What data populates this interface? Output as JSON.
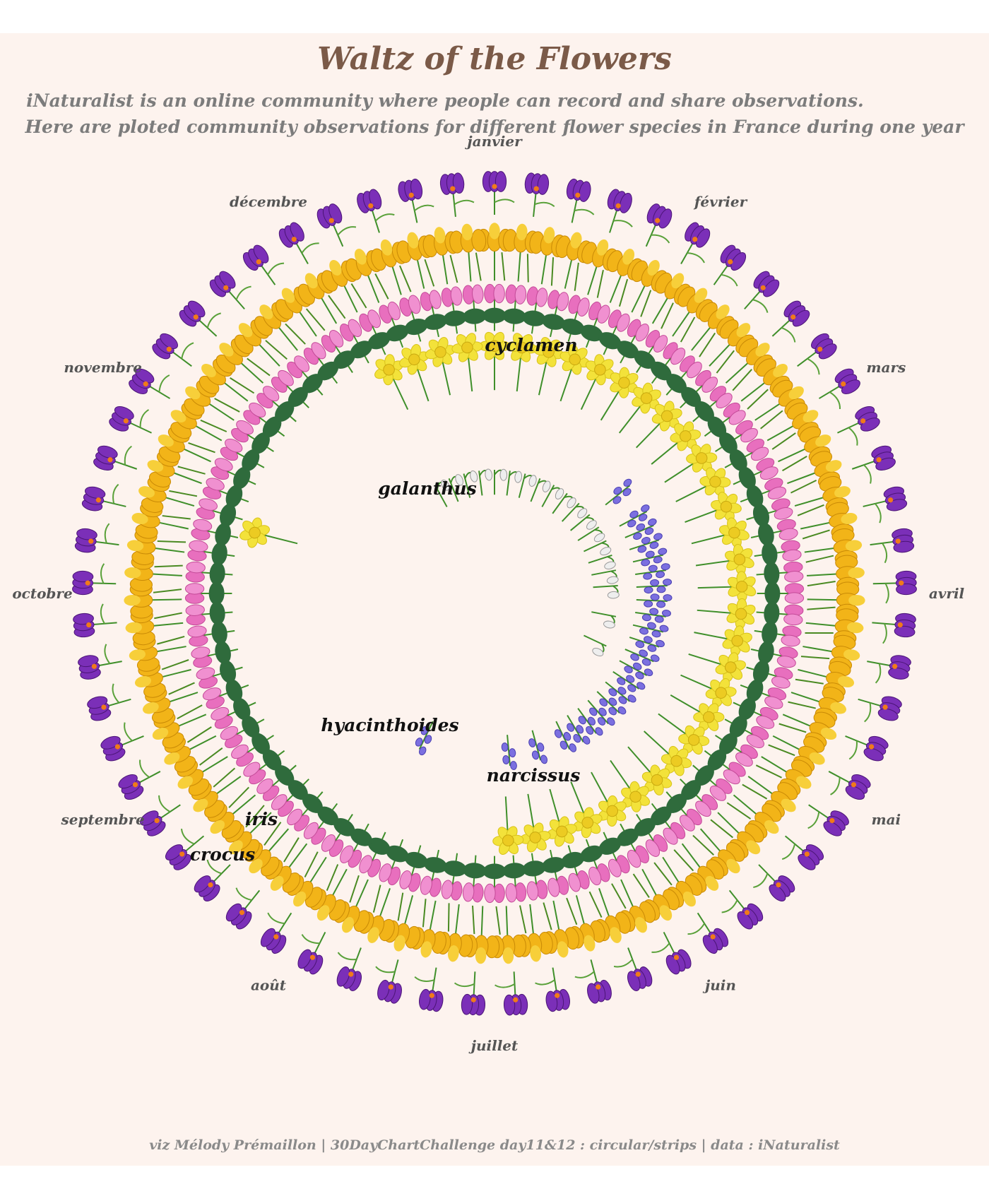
{
  "title": "Waltz of the Flowers",
  "subtitle_line1": "iNaturalist is an online community where people can record and share observations.",
  "subtitle_line2": "Here are ploted community observations for different flower species in France during one year",
  "caption": "viz Mélody Prémaillon | 30DayChartChallenge day11&12 : circular/strips | data : iNaturalist",
  "colors": {
    "background": "#fdf3ee",
    "title": "#7b5a48",
    "text": "#7c7c7c",
    "crocus": "#7b2fb8",
    "iris": "#f2b418",
    "cyclamen": "#e86fbe",
    "narcissus": "#f3e23a",
    "hyacinthoides": "#7b6fe0",
    "galanthus": "#eeeeee",
    "stem": "#3f8f2a"
  },
  "chart_data": {
    "type": "radial-strip",
    "months": [
      "janvier",
      "février",
      "mars",
      "avril",
      "mai",
      "juin",
      "juillet",
      "août",
      "septembre",
      "octobre",
      "novembre",
      "décembre"
    ],
    "series": [
      {
        "name": "crocus",
        "icon": "crocus-flower-icon",
        "ring": 6,
        "values": [
          1,
          1,
          1,
          1,
          1,
          1,
          1,
          1,
          1,
          1,
          1,
          1
        ]
      },
      {
        "name": "iris",
        "icon": "iris-flower-icon",
        "ring": 5,
        "values": [
          1,
          1,
          1,
          1,
          1,
          1,
          1,
          1,
          1,
          1,
          1,
          1
        ]
      },
      {
        "name": "cyclamen",
        "icon": "cyclamen-flower-icon",
        "ring": 4,
        "values": [
          1,
          1,
          1,
          1,
          1,
          1,
          1,
          1,
          1,
          1,
          1,
          1
        ]
      },
      {
        "name": "narcissus",
        "icon": "narcissus-flower-icon",
        "ring": 3,
        "values": [
          1,
          1,
          1,
          1,
          1,
          1,
          0,
          0,
          0,
          0.2,
          0,
          1
        ]
      },
      {
        "name": "hyacinthoides",
        "icon": "bluebell-flower-icon",
        "ring": 2,
        "values": [
          0,
          0.2,
          1,
          1,
          1,
          0.6,
          0.1,
          0,
          0,
          0.1,
          0,
          0
        ]
      },
      {
        "name": "galanthus",
        "icon": "snowdrop-flower-icon",
        "ring": 1,
        "values": [
          1,
          1,
          1,
          0.6,
          0,
          0,
          0,
          0,
          0,
          0,
          0,
          1
        ]
      }
    ]
  }
}
